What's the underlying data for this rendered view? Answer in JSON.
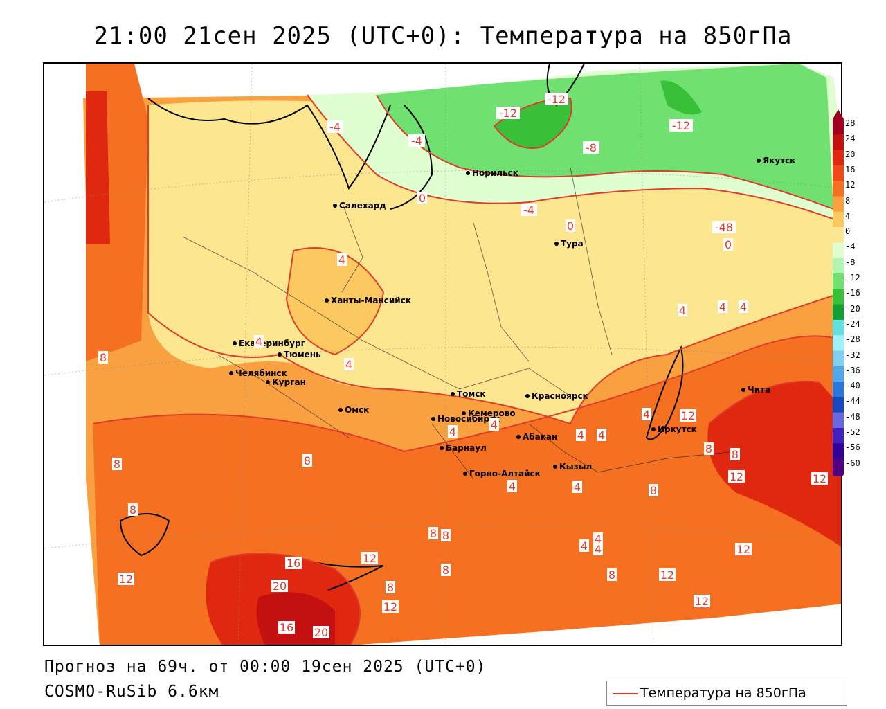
{
  "title": "21:00 21сен 2025 (UTC+0): Температура на 850гПа",
  "footer": {
    "forecast": "Прогноз на 69ч. от 00:00 19сен 2025 (UTC+0)",
    "model": "COSMO-RuSib 6.6км"
  },
  "legend": {
    "label": "Температура на 850гПа",
    "line_color": "#e03c2c"
  },
  "colorbar": {
    "ticks": [
      "28",
      "24",
      "20",
      "16",
      "12",
      "8",
      "4",
      "0",
      "-4",
      "-8",
      "-12",
      "-16",
      "-20",
      "-24",
      "-28",
      "-32",
      "-36",
      "-40",
      "-44",
      "-48",
      "-52",
      "-56",
      "-60"
    ],
    "colors": [
      "#a00020",
      "#c41010",
      "#e02810",
      "#f04818",
      "#f57020",
      "#f9a040",
      "#fcc860",
      "#fde690",
      "#e0ffd0",
      "#b0f5b0",
      "#70e070",
      "#38c038",
      "#10a030",
      "#60e0e0",
      "#a0f0f8",
      "#80d0f0",
      "#50a8e8",
      "#2878e0",
      "#1848c0",
      "#6868e0",
      "#4020c0",
      "#300098",
      "#500080"
    ]
  },
  "cities": [
    {
      "name": "Салехард"
    },
    {
      "name": "Норильск"
    },
    {
      "name": "Якутск"
    },
    {
      "name": "Тура"
    },
    {
      "name": "Ханты-Мансийск"
    },
    {
      "name": "Екатеринбург"
    },
    {
      "name": "Тюмень"
    },
    {
      "name": "Челябинск"
    },
    {
      "name": "Курган"
    },
    {
      "name": "Омск"
    },
    {
      "name": "Новосибирск"
    },
    {
      "name": "Томск"
    },
    {
      "name": "Кемерово"
    },
    {
      "name": "Красноярск"
    },
    {
      "name": "Барнаул"
    },
    {
      "name": "Абакан"
    },
    {
      "name": "Горно-Алтайск"
    },
    {
      "name": "Кызыл"
    },
    {
      "name": "Иркутск"
    },
    {
      "name": "Чита"
    }
  ],
  "contour_labels": [
    "-12",
    "-12",
    "-12",
    "-8",
    "-4",
    "-4",
    "-4",
    "0",
    "-4",
    "-48",
    "0",
    "4",
    "4",
    "4",
    "4",
    "8",
    "8",
    "8",
    "8",
    "8",
    "12",
    "12",
    "12",
    "12",
    "16",
    "20",
    "16",
    "20",
    "12",
    "8",
    "12",
    "8",
    "12",
    "4",
    "4",
    "4",
    "4",
    "4",
    "4",
    "8",
    "8",
    "4",
    "8",
    "12",
    "12",
    "8",
    "4",
    "0",
    "8",
    "4",
    "4",
    "4",
    "4",
    "12"
  ]
}
